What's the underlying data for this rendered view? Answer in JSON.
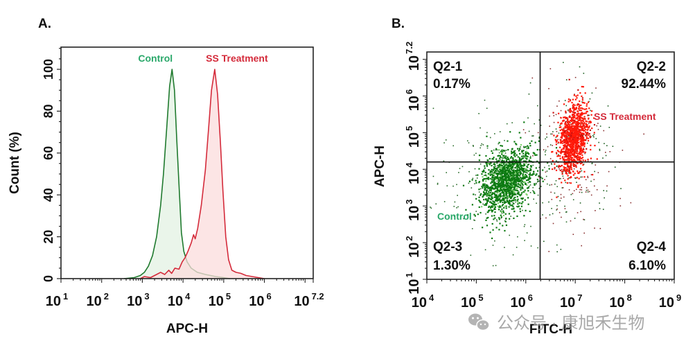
{
  "chart_data": [
    {
      "type": "area",
      "panel_label": "A.",
      "title": "",
      "xlabel": "APC-H",
      "ylabel": "Count  (%)",
      "xscale": "log10",
      "xlim_log10": [
        1,
        7.2
      ],
      "ylim": [
        0,
        110
      ],
      "xticks": [
        {
          "base": "10",
          "exp": "1",
          "log": 1
        },
        {
          "base": "10",
          "exp": "2",
          "log": 2
        },
        {
          "base": "10",
          "exp": "3",
          "log": 3
        },
        {
          "base": "10",
          "exp": "4",
          "log": 4
        },
        {
          "base": "10",
          "exp": "5",
          "log": 5
        },
        {
          "base": "10",
          "exp": "6",
          "log": 6
        },
        {
          "base": "10",
          "exp": "7.2",
          "log": 7.2
        }
      ],
      "yticks": [
        0,
        20,
        40,
        60,
        80,
        100
      ],
      "grid": false,
      "series": [
        {
          "name": "Control",
          "color": "#1f7a2e",
          "fill": "#e3f1e3",
          "label_color": "#2aa86a",
          "peak_log10": 3.73,
          "points": [
            [
              2.55,
              0
            ],
            [
              2.8,
              0.5
            ],
            [
              2.95,
              1.5
            ],
            [
              3.05,
              3
            ],
            [
              3.15,
              6
            ],
            [
              3.25,
              11
            ],
            [
              3.35,
              20
            ],
            [
              3.45,
              35
            ],
            [
              3.52,
              50
            ],
            [
              3.6,
              72
            ],
            [
              3.67,
              92
            ],
            [
              3.73,
              100
            ],
            [
              3.79,
              90
            ],
            [
              3.85,
              65
            ],
            [
              3.9,
              45
            ],
            [
              3.96,
              22
            ],
            [
              4.02,
              13
            ],
            [
              4.1,
              8
            ],
            [
              4.2,
              5
            ],
            [
              4.35,
              3
            ],
            [
              4.55,
              2
            ],
            [
              4.8,
              1
            ],
            [
              5.0,
              0.5
            ],
            [
              5.15,
              0
            ]
          ]
        },
        {
          "name": "SS Treatment",
          "color": "#d42a3a",
          "fill": "#fbdcdc",
          "label_color": "#d42a3a",
          "peak_log10": 4.78,
          "points": [
            [
              2.95,
              0
            ],
            [
              3.05,
              1
            ],
            [
              3.2,
              0.5
            ],
            [
              3.35,
              2
            ],
            [
              3.45,
              3
            ],
            [
              3.55,
              2
            ],
            [
              3.65,
              4
            ],
            [
              3.72,
              2.5
            ],
            [
              3.8,
              5
            ],
            [
              3.9,
              4.5
            ],
            [
              3.98,
              8
            ],
            [
              4.05,
              10
            ],
            [
              4.12,
              13
            ],
            [
              4.2,
              17
            ],
            [
              4.26,
              21
            ],
            [
              4.3,
              19
            ],
            [
              4.36,
              24
            ],
            [
              4.45,
              35
            ],
            [
              4.55,
              52
            ],
            [
              4.63,
              72
            ],
            [
              4.7,
              90
            ],
            [
              4.78,
              100
            ],
            [
              4.85,
              88
            ],
            [
              4.92,
              65
            ],
            [
              4.98,
              42
            ],
            [
              5.05,
              20
            ],
            [
              5.12,
              9
            ],
            [
              5.2,
              4
            ],
            [
              5.3,
              3
            ],
            [
              5.42,
              2.5
            ],
            [
              5.55,
              1.5
            ],
            [
              5.7,
              1
            ],
            [
              5.85,
              0.5
            ],
            [
              6.0,
              0
            ]
          ]
        }
      ],
      "legend": [
        {
          "text": "Control",
          "color": "#2aa86a",
          "placement": "above-peak"
        },
        {
          "text": "SS Treatment",
          "color": "#d42a3a",
          "placement": "above-peak"
        }
      ]
    },
    {
      "type": "scatter",
      "panel_label": "B.",
      "title": "",
      "xlabel": "FITC-H",
      "ylabel": "APC-H",
      "xscale": "log10",
      "yscale": "log10",
      "xlim_log10": [
        4,
        9
      ],
      "ylim_log10": [
        1,
        7.2
      ],
      "xticks": [
        {
          "base": "10",
          "exp": "4",
          "log": 4
        },
        {
          "base": "10",
          "exp": "5",
          "log": 5
        },
        {
          "base": "10",
          "exp": "6",
          "log": 6
        },
        {
          "base": "10",
          "exp": "7",
          "log": 7
        },
        {
          "base": "10",
          "exp": "8",
          "log": 8
        },
        {
          "base": "10",
          "exp": "9",
          "log": 9
        }
      ],
      "yticks": [
        {
          "base": "10",
          "exp": "1",
          "log": 1
        },
        {
          "base": "10",
          "exp": "2",
          "log": 2
        },
        {
          "base": "10",
          "exp": "3",
          "log": 3
        },
        {
          "base": "10",
          "exp": "4",
          "log": 4
        },
        {
          "base": "10",
          "exp": "5",
          "log": 5
        },
        {
          "base": "10",
          "exp": "6",
          "log": 6
        },
        {
          "base": "10",
          "exp": "7.2",
          "log": 7.2
        }
      ],
      "grid": false,
      "quadrant_gate": {
        "x_log10": 6.29,
        "y_log10": 4.2
      },
      "quadrants": [
        {
          "name": "Q2-1",
          "percent": "0.17%",
          "position": "top-left"
        },
        {
          "name": "Q2-2",
          "percent": "92.44%",
          "position": "top-right"
        },
        {
          "name": "Q2-3",
          "percent": "1.30%",
          "position": "bottom-left"
        },
        {
          "name": "Q2-4",
          "percent": "6.10%",
          "position": "bottom-right"
        }
      ],
      "series": [
        {
          "name": "Control",
          "color": "#0d7a12",
          "highlight": "#7bd36a",
          "label_color": "#2aa86a",
          "center_log10": [
            5.6,
            3.7
          ],
          "spread_log10": [
            0.35,
            0.55
          ],
          "dense_points": 1400,
          "sparse_points": 220
        },
        {
          "name": "SS Treatment",
          "color": "#ff1a0a",
          "highlight": "#c80f0f",
          "label_color": "#d42a3a",
          "center_log10": [
            6.95,
            4.85
          ],
          "spread_log10": [
            0.2,
            0.6
          ],
          "dense_points": 1100,
          "sparse_points": 260
        }
      ],
      "legend": [
        {
          "text": "Control",
          "color": "#2aa86a",
          "placement": "lower-left"
        },
        {
          "text": "SS Treatment",
          "color": "#d42a3a",
          "placement": "upper-right"
        }
      ]
    }
  ],
  "watermark": {
    "icon": "wechat-icon",
    "text": "公众号 · 康旭禾生物"
  }
}
